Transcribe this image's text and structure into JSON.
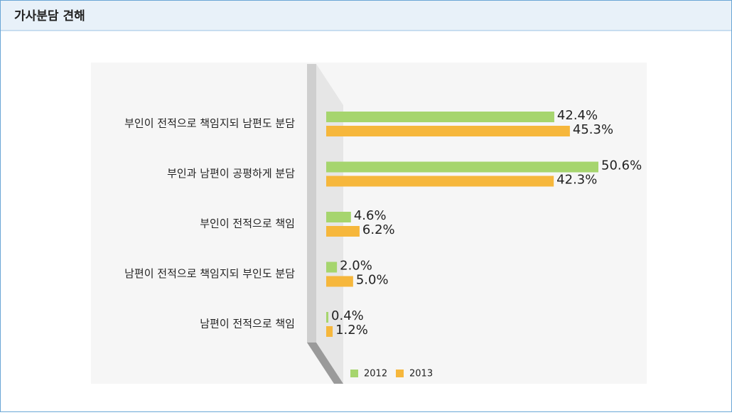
{
  "chart_data": {
    "type": "bar",
    "orientation": "horizontal",
    "title": "가사분담 견해",
    "categories": [
      "부인이 전적으로 책임지되 남편도 분담",
      "부인과 남편이 공평하게 분담",
      "부인이 전적으로 책임",
      "남편이 전적으로 책임지되 부인도 분담",
      "남편이 전적으로 책임"
    ],
    "series": [
      {
        "name": "2012",
        "color": "#a6d56e",
        "values": [
          42.4,
          50.6,
          4.6,
          2.0,
          0.4
        ],
        "value_labels": [
          "42.4%",
          "50.6%",
          "4.6%",
          "2.0%",
          "0.4%"
        ]
      },
      {
        "name": "2013",
        "color": "#f6b73c",
        "values": [
          45.3,
          42.3,
          6.2,
          5.0,
          1.2
        ],
        "value_labels": [
          "45.3%",
          "42.3%",
          "6.2%",
          "5.0%",
          "1.2%"
        ]
      }
    ],
    "legend": "bottom"
  }
}
